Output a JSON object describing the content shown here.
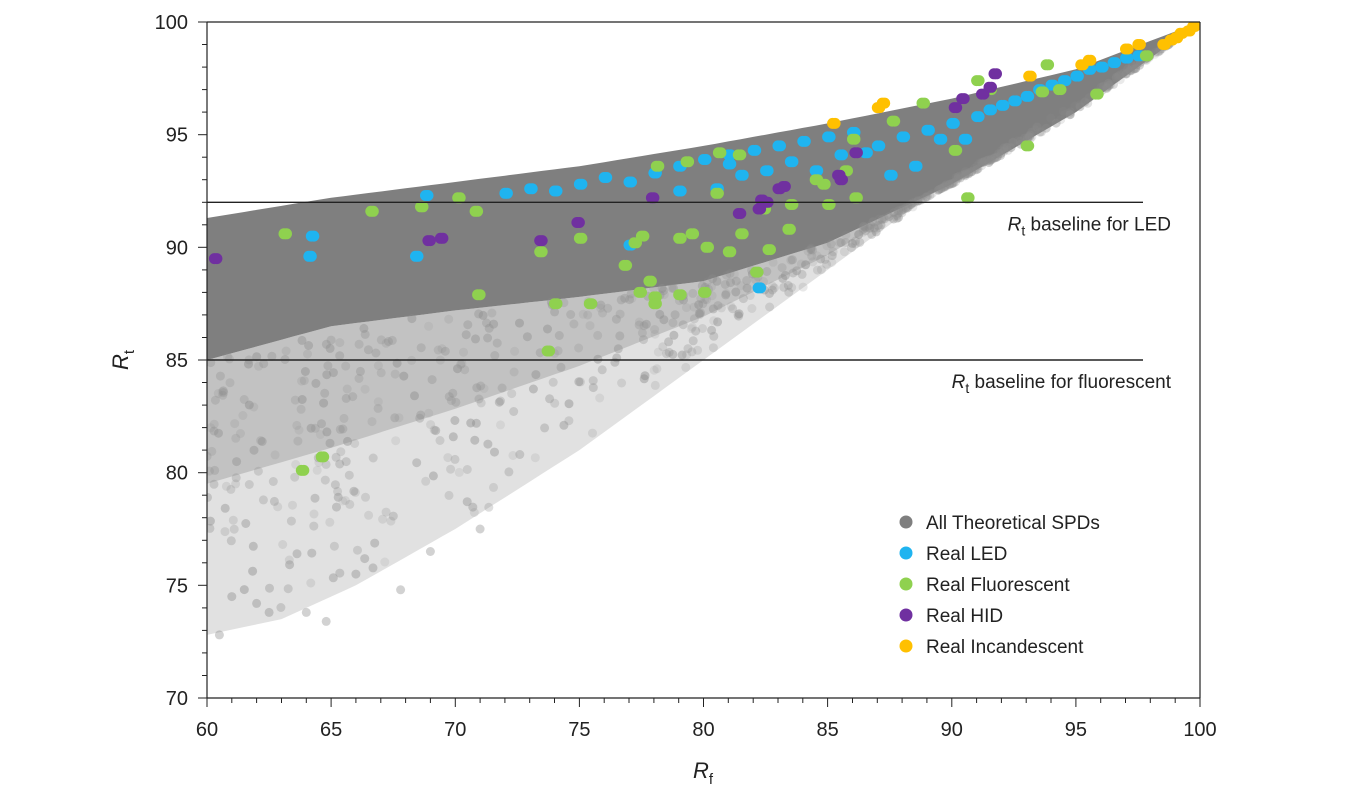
{
  "chart_data": {
    "type": "scatter",
    "title": "",
    "xlabel": {
      "main": "R",
      "sub": "f"
    },
    "ylabel": {
      "main": "R",
      "sub": "t"
    },
    "xlim": [
      60,
      100
    ],
    "ylim": [
      70,
      100
    ],
    "xticks": [
      60,
      65,
      70,
      75,
      80,
      85,
      90,
      95,
      100
    ],
    "yticks": [
      70,
      75,
      80,
      85,
      90,
      95,
      100
    ],
    "xtick_labels": [
      "60",
      "65",
      "70",
      "75",
      "80",
      "85",
      "90",
      "95",
      "100"
    ],
    "ytick_labels": [
      "70",
      "75",
      "80",
      "85",
      "90",
      "95",
      "100"
    ],
    "grid": false,
    "legend_position": "bottom-right",
    "reference_lines": [
      {
        "y": 92,
        "label_main": "R",
        "label_sub": "t",
        "label_rest": " baseline for LED"
      },
      {
        "y": 85,
        "label_main": "R",
        "label_sub": "t",
        "label_rest": " baseline for fluorescent"
      }
    ],
    "theoretical_region": {
      "description_name": "All Theoretical SPDs",
      "upper_boundary": [
        [
          60,
          91.3
        ],
        [
          65,
          92.2
        ],
        [
          70,
          92.9
        ],
        [
          75,
          93.6
        ],
        [
          80,
          94.5
        ],
        [
          85,
          95.5
        ],
        [
          90,
          96.6
        ],
        [
          95,
          97.9
        ],
        [
          100,
          100
        ]
      ],
      "dense_lower_boundary": [
        [
          60,
          85
        ],
        [
          65,
          86.5
        ],
        [
          70,
          87.2
        ],
        [
          75,
          87.8
        ],
        [
          80,
          88.5
        ],
        [
          85,
          90.2
        ],
        [
          90,
          92.8
        ],
        [
          95,
          96
        ],
        [
          100,
          100
        ]
      ],
      "sparse_lower_boundary": [
        [
          60,
          72.8
        ],
        [
          63,
          73.5
        ],
        [
          66,
          75
        ],
        [
          70,
          77.5
        ],
        [
          75,
          81
        ],
        [
          80,
          85
        ],
        [
          85,
          89
        ],
        [
          90,
          93
        ],
        [
          95,
          96.5
        ],
        [
          100,
          100
        ]
      ]
    },
    "series": [
      {
        "name": "All Theoretical SPDs",
        "color": "#7f7f7f",
        "points": [
          [
            60.5,
            72.8
          ],
          [
            61,
            74.5
          ],
          [
            62,
            74.2
          ],
          [
            62.5,
            73.8
          ],
          [
            64,
            73.8
          ],
          [
            64.8,
            73.4
          ],
          [
            66,
            75.5
          ],
          [
            67.8,
            74.8
          ],
          [
            69,
            76.5
          ],
          [
            71,
            77.5
          ]
        ]
      },
      {
        "name": "Real LED",
        "color": "#1fb4f0",
        "points": [
          [
            64.2,
            90.5
          ],
          [
            64.1,
            89.6
          ],
          [
            68.4,
            89.6
          ],
          [
            68.8,
            92.3
          ],
          [
            72,
            92.4
          ],
          [
            73,
            92.6
          ],
          [
            74,
            92.5
          ],
          [
            75,
            92.8
          ],
          [
            76,
            93.1
          ],
          [
            77,
            92.9
          ],
          [
            78,
            93.3
          ],
          [
            79,
            93.6
          ],
          [
            80,
            93.9
          ],
          [
            80.5,
            92.6
          ],
          [
            81,
            94.1
          ],
          [
            81.5,
            93.2
          ],
          [
            82,
            94.3
          ],
          [
            82.5,
            93.4
          ],
          [
            83,
            94.5
          ],
          [
            83.5,
            93.8
          ],
          [
            84,
            94.7
          ],
          [
            84.5,
            93.4
          ],
          [
            85,
            94.9
          ],
          [
            85.5,
            94.1
          ],
          [
            86,
            95.1
          ],
          [
            86.5,
            94.2
          ],
          [
            87,
            94.5
          ],
          [
            87.5,
            93.2
          ],
          [
            88,
            94.9
          ],
          [
            88.5,
            93.6
          ],
          [
            89,
            95.2
          ],
          [
            89.5,
            94.8
          ],
          [
            90,
            95.5
          ],
          [
            90.5,
            94.8
          ],
          [
            91,
            95.8
          ],
          [
            91.5,
            96.1
          ],
          [
            92,
            96.3
          ],
          [
            92.5,
            96.5
          ],
          [
            93,
            96.7
          ],
          [
            93.5,
            97
          ],
          [
            94,
            97.2
          ],
          [
            94.5,
            97.4
          ],
          [
            95,
            97.6
          ],
          [
            95.5,
            97.9
          ],
          [
            96,
            98
          ],
          [
            96.5,
            98.2
          ],
          [
            97,
            98.4
          ],
          [
            97.5,
            98.5
          ],
          [
            82.2,
            88.2
          ],
          [
            77,
            90.1
          ],
          [
            79,
            92.5
          ],
          [
            81,
            93.7
          ]
        ]
      },
      {
        "name": "Real Fluorescent",
        "color": "#8fd14f",
        "points": [
          [
            63.1,
            90.6
          ],
          [
            66.6,
            91.6
          ],
          [
            68.6,
            91.8
          ],
          [
            70.1,
            92.2
          ],
          [
            70.8,
            91.6
          ],
          [
            70.9,
            87.9
          ],
          [
            73.4,
            89.8
          ],
          [
            73.7,
            85.4
          ],
          [
            74,
            87.5
          ],
          [
            75,
            90.4
          ],
          [
            75.4,
            87.5
          ],
          [
            76.8,
            89.2
          ],
          [
            77.2,
            90.2
          ],
          [
            77.4,
            88
          ],
          [
            77.5,
            90.5
          ],
          [
            77.8,
            88.5
          ],
          [
            78,
            87.8
          ],
          [
            78.1,
            93.6
          ],
          [
            79,
            90.4
          ],
          [
            79.3,
            93.8
          ],
          [
            79.5,
            90.6
          ],
          [
            80,
            88
          ],
          [
            80.1,
            90
          ],
          [
            80.5,
            92.4
          ],
          [
            80.6,
            94.2
          ],
          [
            81,
            89.8
          ],
          [
            81.4,
            94.1
          ],
          [
            81.5,
            90.6
          ],
          [
            82.1,
            88.9
          ],
          [
            82.4,
            91.7
          ],
          [
            82.6,
            89.9
          ],
          [
            83.4,
            90.8
          ],
          [
            83.5,
            91.9
          ],
          [
            84.5,
            93
          ],
          [
            84.8,
            92.8
          ],
          [
            85,
            91.9
          ],
          [
            85.7,
            93.4
          ],
          [
            86,
            94.8
          ],
          [
            86.1,
            92.2
          ],
          [
            87.6,
            95.6
          ],
          [
            88.8,
            96.4
          ],
          [
            90.1,
            94.3
          ],
          [
            90.6,
            92.2
          ],
          [
            91,
            97.4
          ],
          [
            91.5,
            97
          ],
          [
            93,
            94.5
          ],
          [
            93.6,
            96.9
          ],
          [
            93.8,
            98.1
          ],
          [
            94.3,
            97
          ],
          [
            95.8,
            96.8
          ],
          [
            97.8,
            98.5
          ],
          [
            63.8,
            80.1
          ],
          [
            64.6,
            80.7
          ],
          [
            78,
            87.5
          ],
          [
            79,
            87.9
          ]
        ]
      },
      {
        "name": "Real HID",
        "color": "#7030a0",
        "points": [
          [
            60.3,
            89.5
          ],
          [
            68.9,
            90.3
          ],
          [
            69.4,
            90.4
          ],
          [
            73.4,
            90.3
          ],
          [
            74.9,
            91.1
          ],
          [
            77.9,
            92.2
          ],
          [
            81.4,
            91.5
          ],
          [
            82.2,
            91.7
          ],
          [
            82.3,
            92.1
          ],
          [
            82.5,
            92
          ],
          [
            83,
            92.6
          ],
          [
            83.2,
            92.7
          ],
          [
            85.4,
            93.2
          ],
          [
            85.5,
            93.0
          ],
          [
            86.1,
            94.2
          ],
          [
            90.1,
            96.2
          ],
          [
            90.4,
            96.6
          ],
          [
            91.2,
            96.8
          ],
          [
            91.5,
            97.1
          ],
          [
            91.7,
            97.7
          ]
        ]
      },
      {
        "name": "Real Incandescent",
        "color": "#ffc000",
        "points": [
          [
            85.2,
            95.5
          ],
          [
            87,
            96.2
          ],
          [
            87.2,
            96.4
          ],
          [
            93.1,
            97.6
          ],
          [
            95.2,
            98.1
          ],
          [
            95.5,
            98.3
          ],
          [
            97,
            98.8
          ],
          [
            97.5,
            99
          ],
          [
            98.5,
            99
          ],
          [
            99,
            99.3
          ],
          [
            99.2,
            99.5
          ],
          [
            99.5,
            99.6
          ],
          [
            99.7,
            99.8
          ],
          [
            99.9,
            99.9
          ],
          [
            100,
            99.9
          ],
          [
            98.8,
            99.2
          ]
        ]
      }
    ]
  }
}
